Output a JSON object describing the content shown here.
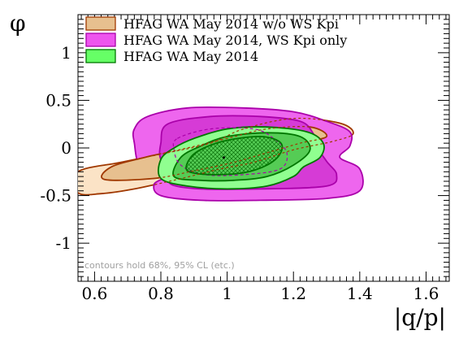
{
  "chart_data": {
    "type": "contour",
    "xlabel": "|q/p|",
    "ylabel": "φ",
    "xlim": [
      0.55,
      1.67
    ],
    "ylim": [
      -1.4,
      1.4
    ],
    "x_ticks": [
      0.6,
      0.8,
      1,
      1.2,
      1.4,
      1.6
    ],
    "x_tick_labels": [
      "0.6",
      "0.8",
      "1",
      "1.2",
      "1.4",
      "1.6"
    ],
    "y_ticks": [
      -1,
      -0.5,
      0,
      0.5,
      1
    ],
    "y_tick_labels": [
      "-1",
      "-0.5",
      "0",
      "0.5",
      "1"
    ],
    "legend_position": "top-left",
    "annotation": "contours hold 68%, 95% CL (etc.)",
    "series": [
      {
        "name": "HFAG WA May 2014 w/o WS Kpi",
        "color": "#f5d9b8",
        "edge_color": "#a03800",
        "contours": [
          {
            "level": "outer",
            "center": [
              0.95,
              -0.1
            ],
            "points": [
              [
                0.55,
                -0.47
              ],
              [
                0.62,
                -0.48
              ],
              [
                0.72,
                -0.43
              ],
              [
                0.85,
                -0.33
              ],
              [
                0.98,
                -0.22
              ],
              [
                1.08,
                -0.15
              ],
              [
                1.2,
                -0.02
              ],
              [
                1.32,
                0.07
              ],
              [
                1.38,
                0.15
              ],
              [
                1.34,
                0.26
              ],
              [
                1.2,
                0.31
              ],
              [
                1.05,
                0.2
              ],
              [
                0.95,
                0.05
              ],
              [
                0.82,
                -0.05
              ],
              [
                0.68,
                -0.15
              ],
              [
                0.55,
                -0.25
              ]
            ]
          },
          {
            "level": "inner",
            "center": [
              0.95,
              -0.1
            ],
            "points": [
              [
                0.63,
                -0.33
              ],
              [
                0.78,
                -0.32
              ],
              [
                0.9,
                -0.24
              ],
              [
                1.02,
                -0.15
              ],
              [
                1.12,
                -0.05
              ],
              [
                1.22,
                0.05
              ],
              [
                1.3,
                0.12
              ],
              [
                1.25,
                0.22
              ],
              [
                1.12,
                0.2
              ],
              [
                1.0,
                0.1
              ],
              [
                0.88,
                0.0
              ],
              [
                0.75,
                -0.1
              ],
              [
                0.65,
                -0.2
              ]
            ]
          }
        ]
      },
      {
        "name": "HFAG WA May 2014, WS Kpi only",
        "color": "#ee55ee",
        "edge_color": "#aa00aa",
        "contours": [
          {
            "level": "outer",
            "center": [
              1.08,
              -0.05
            ],
            "points": [
              [
                0.76,
                0.33
              ],
              [
                0.88,
                0.42
              ],
              [
                1.05,
                0.42
              ],
              [
                1.2,
                0.38
              ],
              [
                1.3,
                0.28
              ],
              [
                1.37,
                0.17
              ],
              [
                1.37,
                0.02
              ],
              [
                1.34,
                -0.1
              ],
              [
                1.4,
                -0.22
              ],
              [
                1.4,
                -0.45
              ],
              [
                1.3,
                -0.53
              ],
              [
                1.1,
                -0.55
              ],
              [
                0.92,
                -0.55
              ],
              [
                0.8,
                -0.5
              ],
              [
                0.78,
                -0.38
              ],
              [
                0.82,
                -0.28
              ],
              [
                0.74,
                -0.2
              ],
              [
                0.72,
                0.05
              ],
              [
                0.72,
                0.2
              ]
            ]
          },
          {
            "level": "inner",
            "center": [
              1.08,
              -0.05
            ],
            "points": [
              [
                0.82,
                0.25
              ],
              [
                0.95,
                0.33
              ],
              [
                1.1,
                0.33
              ],
              [
                1.22,
                0.28
              ],
              [
                1.26,
                0.15
              ],
              [
                1.27,
                0.02
              ],
              [
                1.3,
                -0.14
              ],
              [
                1.33,
                -0.28
              ],
              [
                1.3,
                -0.4
              ],
              [
                1.1,
                -0.43
              ],
              [
                0.92,
                -0.43
              ],
              [
                0.83,
                -0.38
              ],
              [
                0.84,
                -0.26
              ],
              [
                0.8,
                -0.12
              ],
              [
                0.8,
                0.05
              ]
            ]
          },
          {
            "level": "center-contour",
            "center": [
              1.0,
              -0.1
            ],
            "points": [
              [
                0.85,
                0.1
              ],
              [
                0.95,
                0.2
              ],
              [
                1.08,
                0.2
              ],
              [
                1.14,
                0.1
              ],
              [
                1.18,
                -0.05
              ],
              [
                1.16,
                -0.22
              ],
              [
                1.05,
                -0.28
              ],
              [
                0.93,
                -0.28
              ],
              [
                0.86,
                -0.18
              ],
              [
                0.84,
                -0.02
              ]
            ]
          }
        ]
      },
      {
        "name": "HFAG WA May 2014",
        "color": "#66ff66",
        "edge_color": "#007700",
        "contours": [
          {
            "level": "outer",
            "center": [
              0.98,
              -0.12
            ],
            "points": [
              [
                0.8,
                -0.32
              ],
              [
                0.88,
                -0.4
              ],
              [
                1.0,
                -0.43
              ],
              [
                1.12,
                -0.4
              ],
              [
                1.2,
                -0.3
              ],
              [
                1.23,
                -0.2
              ],
              [
                1.28,
                -0.1
              ],
              [
                1.29,
                0.05
              ],
              [
                1.24,
                0.17
              ],
              [
                1.12,
                0.22
              ],
              [
                1.0,
                0.2
              ],
              [
                0.9,
                0.1
              ],
              [
                0.84,
                0.0
              ],
              [
                0.8,
                -0.12
              ]
            ]
          },
          {
            "level": "middle",
            "center": [
              0.98,
              -0.12
            ],
            "points": [
              [
                0.84,
                -0.3
              ],
              [
                0.92,
                -0.34
              ],
              [
                1.02,
                -0.34
              ],
              [
                1.12,
                -0.3
              ],
              [
                1.2,
                -0.18
              ],
              [
                1.25,
                -0.02
              ],
              [
                1.22,
                0.12
              ],
              [
                1.12,
                0.16
              ],
              [
                1.0,
                0.12
              ],
              [
                0.92,
                0.02
              ],
              [
                0.86,
                -0.1
              ]
            ]
          },
          {
            "level": "inner",
            "center": [
              0.98,
              -0.12
            ],
            "points": [
              [
                0.88,
                -0.24
              ],
              [
                0.95,
                -0.28
              ],
              [
                1.05,
                -0.26
              ],
              [
                1.12,
                -0.18
              ],
              [
                1.16,
                -0.06
              ],
              [
                1.16,
                0.06
              ],
              [
                1.1,
                0.12
              ],
              [
                1.0,
                0.08
              ],
              [
                0.93,
                0.0
              ],
              [
                0.89,
                -0.1
              ]
            ]
          }
        ]
      }
    ],
    "best_fit": {
      "x": 0.99,
      "y": -0.1
    }
  }
}
